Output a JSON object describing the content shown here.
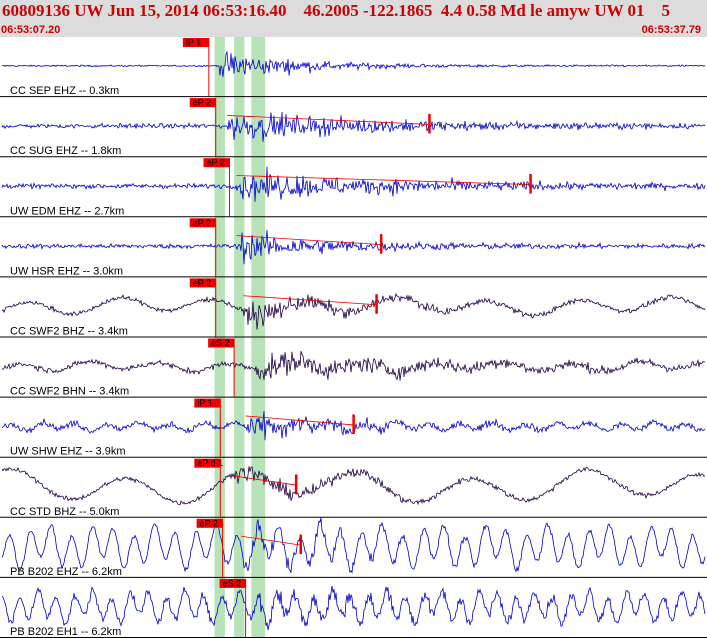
{
  "header": {
    "title": "60809136 UW Jun 15, 2014 06:53:16.40    46.2005 -122.1865  4.4 0.58 Md le amyw UW 01    5",
    "start_time": "06:53:07.20",
    "end_time": "06:53:37.79"
  },
  "colors": {
    "header_bg": "#dcdcdc",
    "header_text": "#cc0000",
    "trace_ehz": "#0000cc",
    "trace_bb": "#220044",
    "pick": "#ee0000",
    "window_band": "#b8e3b8"
  },
  "chart_data": {
    "type": "line",
    "title": "60809136 UW Jun 15, 2014 06:53:16.40    46.2005 -122.1865  4.4 0.58 Md le amyw UW 01    5",
    "xlim": [
      "06:53:07.20",
      "06:53:37.79"
    ],
    "traces": [
      {
        "label": "CC SEP EHZ -- 0.3km",
        "pick": "iP 1",
        "pick_t": 9.0,
        "onset_t": 9.4,
        "amp": 0.13,
        "noise": 0.04,
        "wave": 0.0,
        "wave_period": 0,
        "peak": 0.75,
        "decay": 3.5,
        "coda_t": null,
        "color": "ehz"
      },
      {
        "label": "CC SUG EHZ -- 1.8km",
        "pick": "eP 2",
        "pick_t": 9.3,
        "onset_t": 9.8,
        "amp": 0.14,
        "noise": 0.12,
        "wave": 0.0,
        "wave_period": 0,
        "peak": 0.7,
        "decay": 6,
        "coda_t": 18.6,
        "color": "ehz"
      },
      {
        "label": "UW EDM EHZ -- 2.7km",
        "pick": "eP 2",
        "pick_t": 9.9,
        "onset_t": 10.2,
        "amp": 0.14,
        "noise": 0.12,
        "wave": 0.0,
        "wave_period": 0,
        "peak": 0.7,
        "decay": 7,
        "coda_t": 23.0,
        "color": "ehz"
      },
      {
        "label": "UW HSR EHZ -- 3.0km",
        "pick": "eP 2",
        "pick_t": 9.3,
        "onset_t": 10.2,
        "amp": 0.14,
        "noise": 0.12,
        "wave": 0.0,
        "wave_period": 0,
        "peak": 0.7,
        "decay": 4,
        "coda_t": 16.5,
        "color": "ehz"
      },
      {
        "label": "CC SWF2 BHZ -- 3.4km",
        "pick": "eP 2",
        "pick_t": 9.3,
        "onset_t": 10.5,
        "amp": 0.14,
        "noise": 0.12,
        "wave": 0.22,
        "wave_period": 4.0,
        "peak": 0.55,
        "decay": 4,
        "coda_t": 16.3,
        "color": "bb"
      },
      {
        "label": "CC SWF2 BHN -- 3.4km",
        "pick": "eS 2",
        "pick_t": 10.1,
        "onset_t": 11.0,
        "amp": 0.14,
        "noise": 0.15,
        "wave": 0.12,
        "wave_period": 3.0,
        "peak": 0.55,
        "decay": 8,
        "coda_t": null,
        "color": "bb"
      },
      {
        "label": "UW SHW EHZ -- 3.9km",
        "pick": "iP 1",
        "pick_t": 9.5,
        "onset_t": 10.6,
        "amp": 0.14,
        "noise": 0.16,
        "wave": 0.1,
        "wave_period": 1.4,
        "peak": 0.6,
        "decay": 3,
        "coda_t": 15.3,
        "color": "ehz"
      },
      {
        "label": "CC STD BHZ -- 5.0km",
        "pick": "eP d 1",
        "pick_t": 9.5,
        "onset_t": 10.1,
        "amp": 0.14,
        "noise": 0.12,
        "wave": 0.42,
        "wave_period": 5.0,
        "peak": 0.45,
        "decay": 4,
        "coda_t": 12.8,
        "color": "bb"
      },
      {
        "label": "PB B202 EHZ -- 6.2km",
        "pick": "eP 2",
        "pick_t": 9.6,
        "onset_t": 10.4,
        "amp": 0.14,
        "noise": 0.12,
        "wave": 0.55,
        "wave_period": 0.9,
        "peak": 0.4,
        "decay": 5,
        "coda_t": 13.0,
        "color": "ehz"
      },
      {
        "label": "PB B202 EH1 -- 6.2km",
        "pick": "eS 2",
        "pick_t": 10.6,
        "onset_t": 11.0,
        "amp": 0.14,
        "noise": 0.22,
        "wave": 0.4,
        "wave_period": 0.8,
        "peak": 0.45,
        "decay": 5,
        "coda_t": null,
        "color": "ehz"
      }
    ],
    "bands": [
      [
        9.25,
        9.7
      ],
      [
        10.1,
        10.55
      ],
      [
        10.85,
        11.45
      ]
    ]
  }
}
